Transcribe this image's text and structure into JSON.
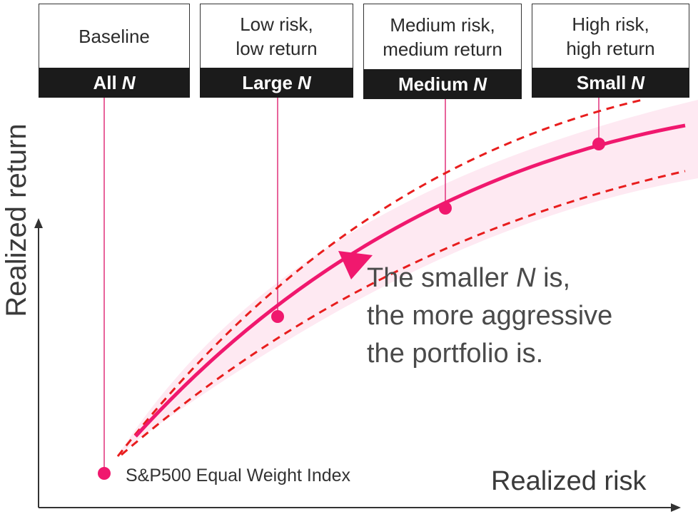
{
  "axes": {
    "y_label": "Realized return",
    "x_label": "Realized risk"
  },
  "boxes": [
    {
      "top_lines": [
        "Baseline"
      ],
      "bottom_text": "All",
      "bottom_var": "N"
    },
    {
      "top_lines": [
        "Low risk,",
        "low return"
      ],
      "bottom_text": "Large",
      "bottom_var": "N"
    },
    {
      "top_lines": [
        "Medium risk,",
        "medium return"
      ],
      "bottom_text": "Medium",
      "bottom_var": "N"
    },
    {
      "top_lines": [
        "High risk,",
        "high return"
      ],
      "bottom_text": "Small",
      "bottom_var": "N"
    }
  ],
  "origin_label": "S&P500 Equal Weight Index",
  "annotation": {
    "line1_before": "The smaller ",
    "line1_var": "N",
    "line1_after": " is,",
    "line2": "the more aggressive",
    "line3": "the portfolio is."
  },
  "colors": {
    "curve": "#f0186e",
    "band": "#fde2ee",
    "dashed": "#e81d1d",
    "connector": "#e0307a",
    "box_header": "#1b1b1b"
  }
}
